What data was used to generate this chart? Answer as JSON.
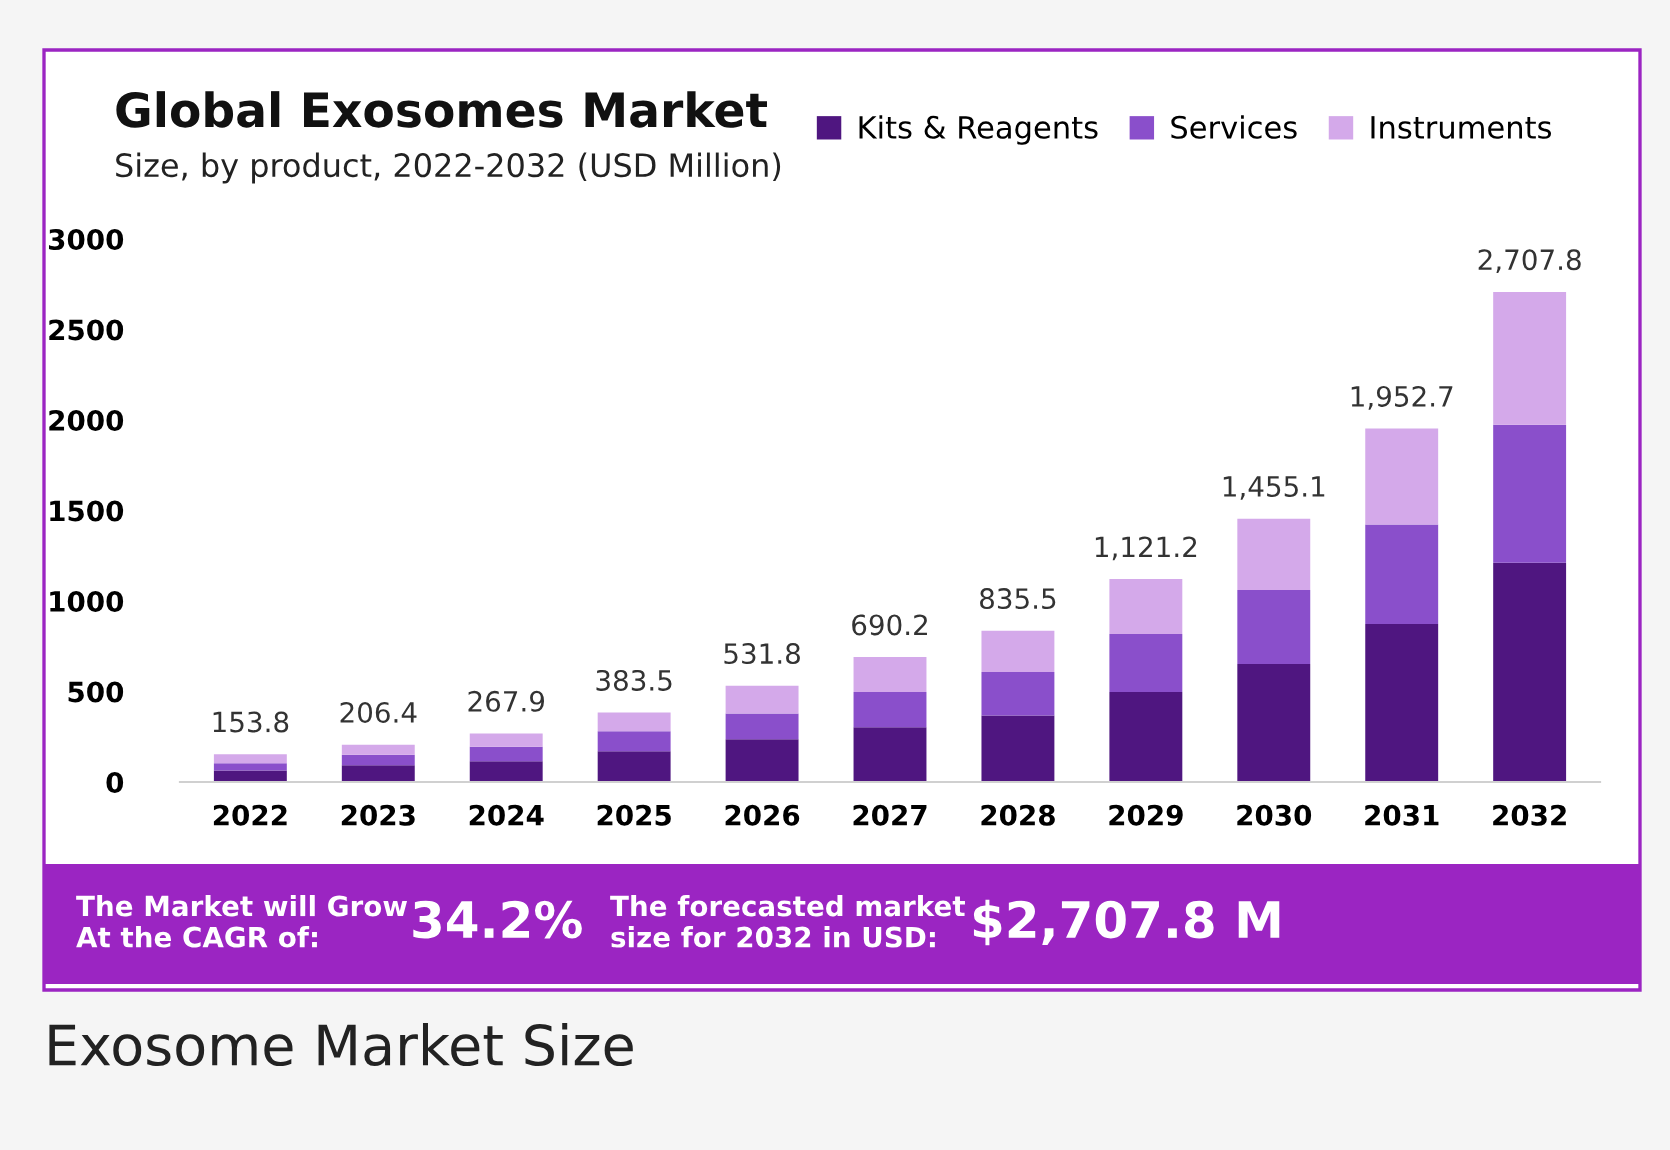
{
  "chart_data": {
    "type": "bar",
    "title": "Global Exosomes Market",
    "subtitle": "Size, by product, 2022-2032 (USD Million)",
    "categories": [
      "2022",
      "2023",
      "2024",
      "2025",
      "2026",
      "2027",
      "2028",
      "2029",
      "2030",
      "2031",
      "2032"
    ],
    "stacked": true,
    "series": [
      {
        "name": "Kits & Reagents",
        "color": "#4f1680",
        "values": [
          63,
          92,
          114,
          170,
          236,
          302,
          368,
          497,
          652,
          873,
          1212
        ]
      },
      {
        "name": "Services",
        "color": "#8a4fcb",
        "values": [
          40,
          59,
          81,
          110,
          143,
          195,
          240,
          321,
          409,
          549,
          762
        ]
      },
      {
        "name": "Instruments",
        "color": "#d4a9ea",
        "values": [
          50.8,
          55.4,
          72.9,
          103.5,
          152.8,
          193.2,
          227.5,
          303.2,
          394.1,
          530.7,
          733.8
        ]
      }
    ],
    "totals": [
      "153.8",
      "206.4",
      "267.9",
      "383.5",
      "531.8",
      "690.2",
      "835.5",
      "1,121.2",
      "1,455.1",
      "1,952.7",
      "2,707.8"
    ],
    "ylim": [
      0,
      3000
    ],
    "yticks": [
      0,
      500,
      1000,
      1500,
      2000,
      2500,
      3000
    ],
    "grid": false,
    "legend": "top right",
    "annotations": [
      "The Market will Grow At the CAGR of:",
      "34.2%",
      "The forecasted market size for 2032 in USD:",
      "$2,707.8 M",
      "Exosome Market Size"
    ]
  }
}
